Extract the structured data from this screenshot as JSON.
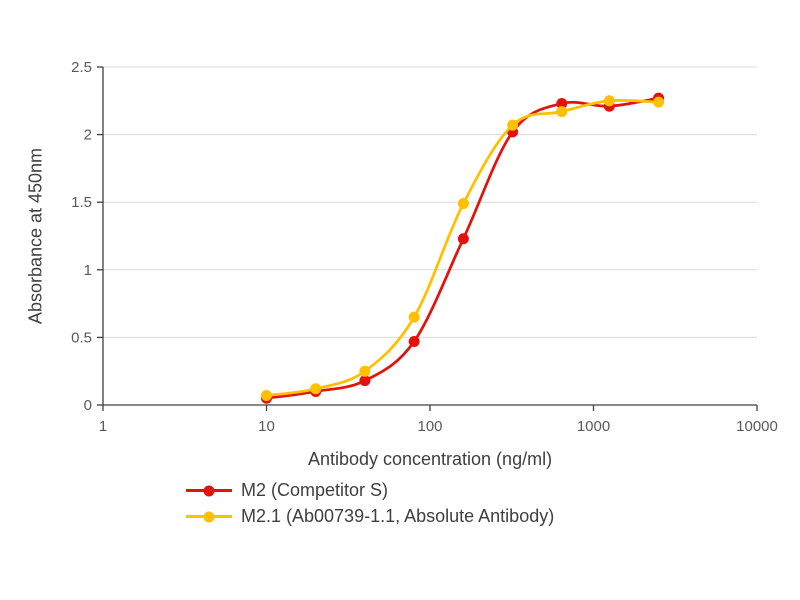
{
  "chart_data": {
    "type": "line",
    "title": "",
    "xlabel": "Antibody concentration (ng/ml)",
    "ylabel": "Absorbance at 450nm",
    "x_scale": "log10",
    "xlim": [
      1,
      10000
    ],
    "ylim": [
      0,
      2.5
    ],
    "x_ticks": [
      1,
      10,
      100,
      1000,
      10000
    ],
    "y_ticks": [
      0,
      0.5,
      1,
      1.5,
      2,
      2.5
    ],
    "grid": "horizontal",
    "legend_position": "bottom-left",
    "x": [
      10,
      20,
      40,
      80,
      160,
      320,
      640,
      1250,
      2500
    ],
    "series": [
      {
        "name": "M2 (Competitor S)",
        "color": "#e3120b",
        "values": [
          0.05,
          0.1,
          0.18,
          0.47,
          1.23,
          2.02,
          2.23,
          2.21,
          2.27
        ]
      },
      {
        "name": "M2.1 (Ab00739-1.1, Absolute Antibody)",
        "color": "#ffc000",
        "values": [
          0.07,
          0.12,
          0.25,
          0.65,
          1.49,
          2.07,
          2.17,
          2.25,
          2.24
        ]
      }
    ],
    "style": {
      "axis_color": "#404040",
      "grid_color": "#d9d9d9",
      "tick_label_color": "#595959"
    }
  }
}
